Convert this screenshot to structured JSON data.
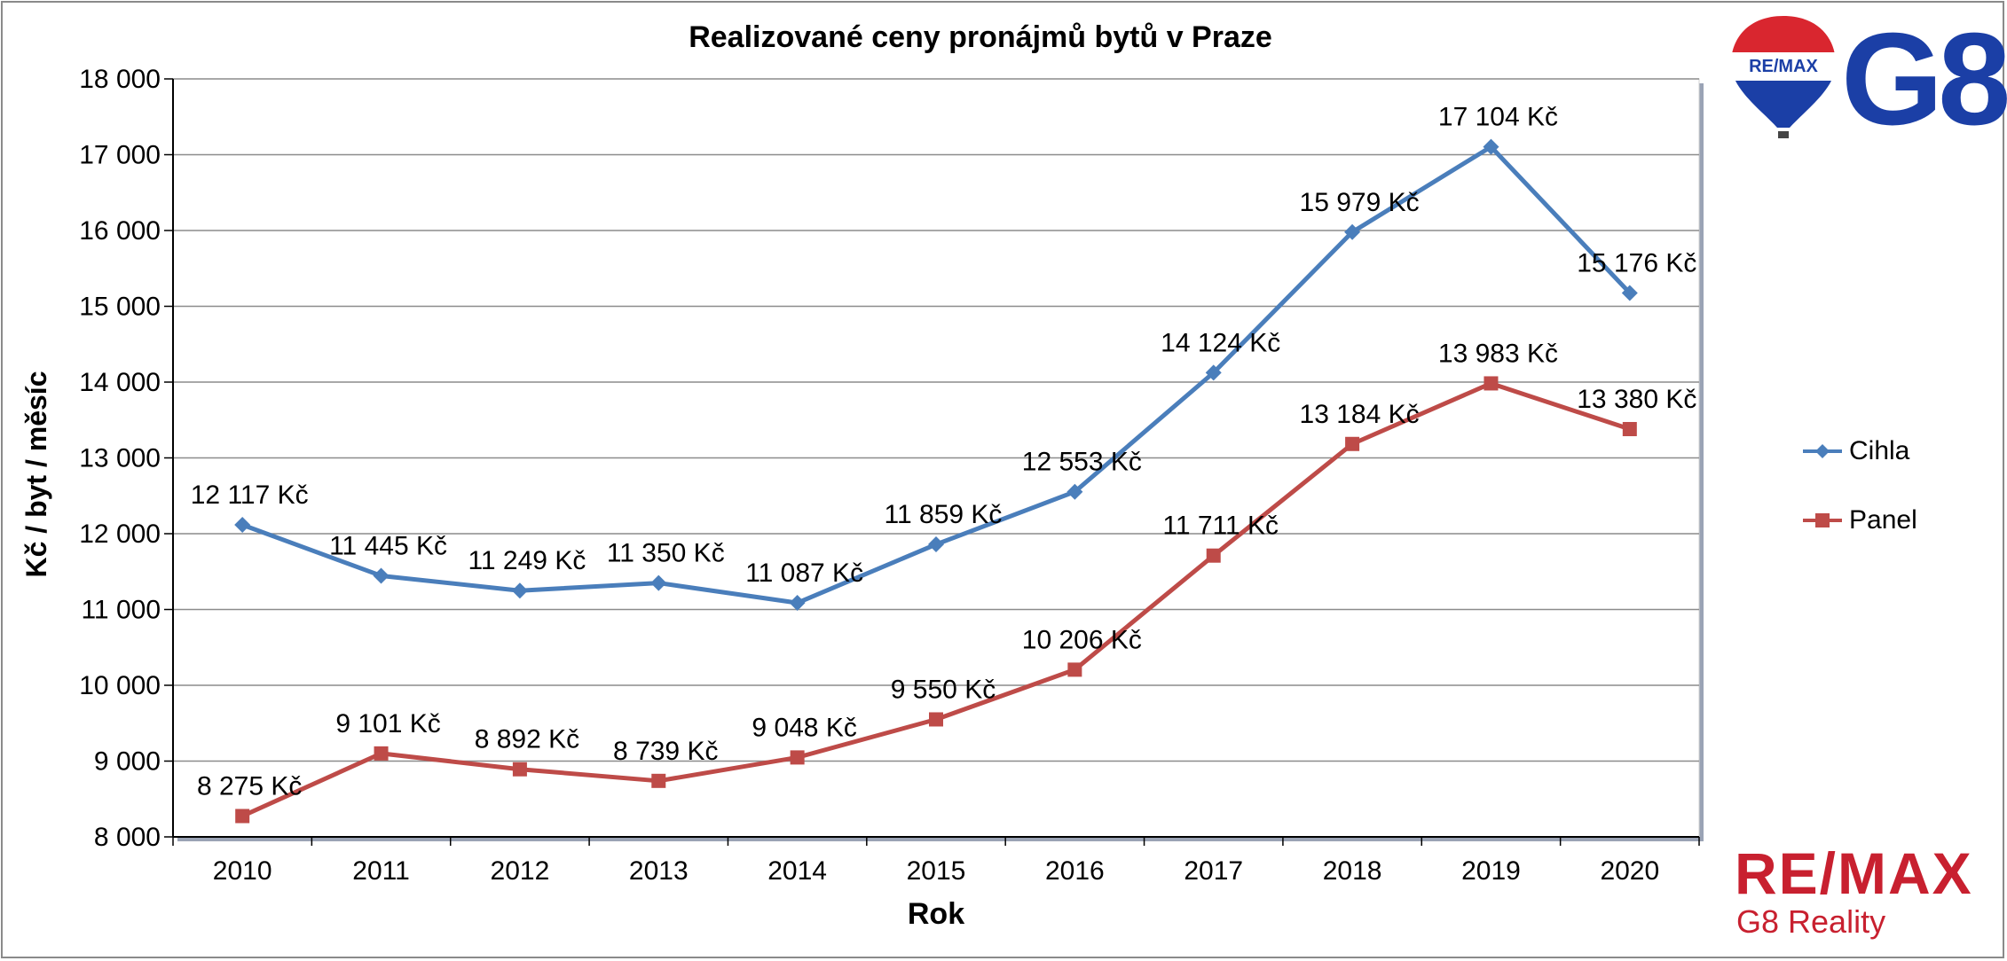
{
  "chart_data": {
    "type": "line",
    "title": "Realizované ceny pronájmů bytů v Praze",
    "xlabel": "Rok",
    "ylabel": "Kč / byt / měsíc",
    "categories": [
      "2010",
      "2011",
      "2012",
      "2013",
      "2014",
      "2015",
      "2016",
      "2017",
      "2018",
      "2019",
      "2020"
    ],
    "ylim": [
      8000,
      18000
    ],
    "yticks": [
      {
        "value": 8000,
        "label": "8 000"
      },
      {
        "value": 9000,
        "label": "9 000"
      },
      {
        "value": 10000,
        "label": "10 000"
      },
      {
        "value": 11000,
        "label": "11 000"
      },
      {
        "value": 12000,
        "label": "12 000"
      },
      {
        "value": 13000,
        "label": "13 000"
      },
      {
        "value": 14000,
        "label": "14 000"
      },
      {
        "value": 15000,
        "label": "15 000"
      },
      {
        "value": 16000,
        "label": "16 000"
      },
      {
        "value": 17000,
        "label": "17 000"
      },
      {
        "value": 18000,
        "label": "18 000"
      }
    ],
    "grid": true,
    "legend_position": "right",
    "series": [
      {
        "name": "Cihla",
        "color": "#4a7ebb",
        "marker": "diamond",
        "values": [
          12117,
          11445,
          11249,
          11350,
          11087,
          11859,
          12553,
          14124,
          15979,
          17104,
          15176
        ],
        "labels": [
          "12 117 Kč",
          "11 445 Kč",
          "11 249 Kč",
          "11 350 Kč",
          "11 087 Kč",
          "11 859 Kč",
          "12 553 Kč",
          "14 124 Kč",
          "15 979 Kč",
          "17 104 Kč",
          "15 176 Kč"
        ]
      },
      {
        "name": "Panel",
        "color": "#be4b48",
        "marker": "square",
        "values": [
          8275,
          9101,
          8892,
          8739,
          9048,
          9550,
          10206,
          11711,
          13184,
          13983,
          13380
        ],
        "labels": [
          "8 275 Kč",
          "9 101 Kč",
          "8 892 Kč",
          "8 739 Kč",
          "9 048 Kč",
          "9 550 Kč",
          "10 206 Kč",
          "11 711 Kč",
          "13 184 Kč",
          "13 983 Kč",
          "13 380 Kč"
        ]
      }
    ]
  },
  "logos": {
    "balloon_text": "RE/MAX",
    "top_right": "G8",
    "bottom_brand": "RE/MAX",
    "bottom_sub": "G8 Reality"
  }
}
